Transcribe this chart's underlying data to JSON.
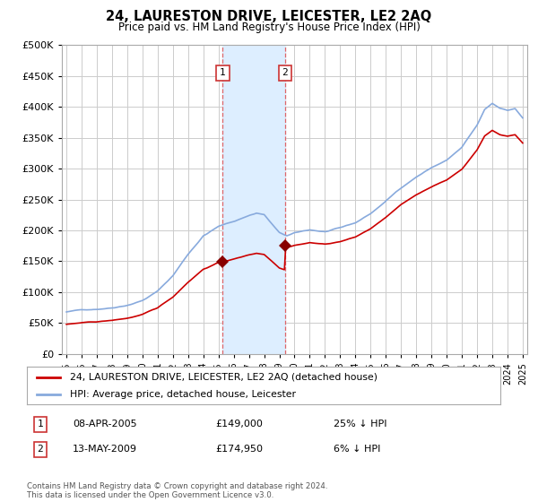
{
  "title": "24, LAURESTON DRIVE, LEICESTER, LE2 2AQ",
  "subtitle": "Price paid vs. HM Land Registry's House Price Index (HPI)",
  "footer": "Contains HM Land Registry data © Crown copyright and database right 2024.\nThis data is licensed under the Open Government Licence v3.0.",
  "legend_line1": "24, LAURESTON DRIVE, LEICESTER, LE2 2AQ (detached house)",
  "legend_line2": "HPI: Average price, detached house, Leicester",
  "transaction1": {
    "label": "1",
    "date": "08-APR-2005",
    "price": "£149,000",
    "hpi": "25% ↓ HPI"
  },
  "transaction2": {
    "label": "2",
    "date": "13-MAY-2009",
    "price": "£174,950",
    "hpi": "6% ↓ HPI"
  },
  "price_color": "#cc0000",
  "hpi_color": "#88aadd",
  "highlight_color": "#ddeeff",
  "marker_color": "#880000",
  "background_color": "#ffffff",
  "grid_color": "#cccccc",
  "ylim": [
    0,
    500000
  ],
  "yticks": [
    0,
    50000,
    100000,
    150000,
    200000,
    250000,
    300000,
    350000,
    400000,
    450000,
    500000
  ],
  "x_start_year": 1995,
  "x_end_year": 2025,
  "transaction1_x": 2005.27,
  "transaction1_price": 149000,
  "transaction2_x": 2009.37,
  "transaction2_price": 174950
}
